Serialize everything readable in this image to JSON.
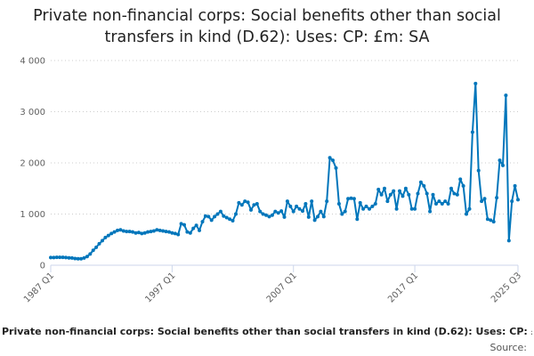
{
  "chart_data": {
    "type": "line",
    "title": "Private non-financial corps: Social benefits other than social transfers in kind (D.62): Uses: CP: £m: SA",
    "series": [
      {
        "name": "Private non-financial corps: Social benefits other than social transfers in kind (D.62): Uses: CP: £m: SA",
        "color": "#0076bb",
        "points": [
          [
            "1987 Q1",
            150
          ],
          [
            "1987 Q2",
            150
          ],
          [
            "1987 Q3",
            155
          ],
          [
            "1987 Q4",
            155
          ],
          [
            "1988 Q1",
            155
          ],
          [
            "1988 Q2",
            150
          ],
          [
            "1988 Q3",
            145
          ],
          [
            "1988 Q4",
            140
          ],
          [
            "1989 Q1",
            130
          ],
          [
            "1989 Q2",
            125
          ],
          [
            "1989 Q3",
            125
          ],
          [
            "1989 Q4",
            140
          ],
          [
            "1990 Q1",
            170
          ],
          [
            "1990 Q2",
            220
          ],
          [
            "1990 Q3",
            290
          ],
          [
            "1990 Q4",
            350
          ],
          [
            "1991 Q1",
            420
          ],
          [
            "1991 Q2",
            480
          ],
          [
            "1991 Q3",
            540
          ],
          [
            "1991 Q4",
            580
          ],
          [
            "1992 Q1",
            620
          ],
          [
            "1992 Q2",
            650
          ],
          [
            "1992 Q3",
            680
          ],
          [
            "1992 Q4",
            690
          ],
          [
            "1993 Q1",
            670
          ],
          [
            "1993 Q2",
            660
          ],
          [
            "1993 Q3",
            660
          ],
          [
            "1993 Q4",
            650
          ],
          [
            "1994 Q1",
            630
          ],
          [
            "1994 Q2",
            640
          ],
          [
            "1994 Q3",
            620
          ],
          [
            "1994 Q4",
            630
          ],
          [
            "1995 Q1",
            650
          ],
          [
            "1995 Q2",
            660
          ],
          [
            "1995 Q3",
            670
          ],
          [
            "1995 Q4",
            690
          ],
          [
            "1996 Q1",
            680
          ],
          [
            "1996 Q2",
            670
          ],
          [
            "1996 Q3",
            660
          ],
          [
            "1996 Q4",
            650
          ],
          [
            "1997 Q1",
            630
          ],
          [
            "1997 Q2",
            620
          ],
          [
            "1997 Q3",
            600
          ],
          [
            "1997 Q4",
            810
          ],
          [
            "1998 Q1",
            790
          ],
          [
            "1998 Q2",
            650
          ],
          [
            "1998 Q3",
            630
          ],
          [
            "1998 Q4",
            720
          ],
          [
            "1999 Q1",
            780
          ],
          [
            "1999 Q2",
            680
          ],
          [
            "1999 Q3",
            850
          ],
          [
            "1999 Q4",
            960
          ],
          [
            "2000 Q1",
            950
          ],
          [
            "2000 Q2",
            880
          ],
          [
            "2000 Q3",
            950
          ],
          [
            "2000 Q4",
            1000
          ],
          [
            "2001 Q1",
            1050
          ],
          [
            "2001 Q2",
            960
          ],
          [
            "2001 Q3",
            930
          ],
          [
            "2001 Q4",
            900
          ],
          [
            "2002 Q1",
            870
          ],
          [
            "2002 Q2",
            1000
          ],
          [
            "2002 Q3",
            1220
          ],
          [
            "2002 Q4",
            1180
          ],
          [
            "2003 Q1",
            1250
          ],
          [
            "2003 Q2",
            1230
          ],
          [
            "2003 Q3",
            1080
          ],
          [
            "2003 Q4",
            1180
          ],
          [
            "2004 Q1",
            1200
          ],
          [
            "2004 Q2",
            1050
          ],
          [
            "2004 Q3",
            1000
          ],
          [
            "2004 Q4",
            980
          ],
          [
            "2005 Q1",
            950
          ],
          [
            "2005 Q2",
            980
          ],
          [
            "2005 Q3",
            1050
          ],
          [
            "2005 Q4",
            1020
          ],
          [
            "2006 Q1",
            1060
          ],
          [
            "2006 Q2",
            940
          ],
          [
            "2006 Q3",
            1250
          ],
          [
            "2006 Q4",
            1150
          ],
          [
            "2007 Q1",
            1050
          ],
          [
            "2007 Q2",
            1150
          ],
          [
            "2007 Q3",
            1100
          ],
          [
            "2007 Q4",
            1060
          ],
          [
            "2008 Q1",
            1200
          ],
          [
            "2008 Q2",
            940
          ],
          [
            "2008 Q3",
            1250
          ],
          [
            "2008 Q4",
            880
          ],
          [
            "2009 Q1",
            950
          ],
          [
            "2009 Q2",
            1050
          ],
          [
            "2009 Q3",
            950
          ],
          [
            "2009 Q4",
            1250
          ],
          [
            "2010 Q1",
            2100
          ],
          [
            "2010 Q2",
            2050
          ],
          [
            "2010 Q3",
            1900
          ],
          [
            "2010 Q4",
            1200
          ],
          [
            "2011 Q1",
            1000
          ],
          [
            "2011 Q2",
            1050
          ],
          [
            "2011 Q3",
            1300
          ],
          [
            "2011 Q4",
            1310
          ],
          [
            "2012 Q1",
            1300
          ],
          [
            "2012 Q2",
            900
          ],
          [
            "2012 Q3",
            1220
          ],
          [
            "2012 Q4",
            1100
          ],
          [
            "2013 Q1",
            1150
          ],
          [
            "2013 Q2",
            1100
          ],
          [
            "2013 Q3",
            1150
          ],
          [
            "2013 Q4",
            1200
          ],
          [
            "2014 Q1",
            1480
          ],
          [
            "2014 Q2",
            1380
          ],
          [
            "2014 Q3",
            1500
          ],
          [
            "2014 Q4",
            1250
          ],
          [
            "2015 Q1",
            1380
          ],
          [
            "2015 Q2",
            1450
          ],
          [
            "2015 Q3",
            1100
          ],
          [
            "2015 Q4",
            1450
          ],
          [
            "2016 Q1",
            1350
          ],
          [
            "2016 Q2",
            1500
          ],
          [
            "2016 Q3",
            1380
          ],
          [
            "2016 Q4",
            1100
          ],
          [
            "2017 Q1",
            1100
          ],
          [
            "2017 Q2",
            1400
          ],
          [
            "2017 Q3",
            1620
          ],
          [
            "2017 Q4",
            1550
          ],
          [
            "2018 Q1",
            1400
          ],
          [
            "2018 Q2",
            1050
          ],
          [
            "2018 Q3",
            1380
          ],
          [
            "2018 Q4",
            1200
          ],
          [
            "2019 Q1",
            1250
          ],
          [
            "2019 Q2",
            1200
          ],
          [
            "2019 Q3",
            1250
          ],
          [
            "2019 Q4",
            1200
          ],
          [
            "2020 Q1",
            1500
          ],
          [
            "2020 Q2",
            1400
          ],
          [
            "2020 Q3",
            1380
          ],
          [
            "2020 Q4",
            1680
          ],
          [
            "2021 Q1",
            1550
          ],
          [
            "2021 Q2",
            1000
          ],
          [
            "2021 Q3",
            1100
          ],
          [
            "2021 Q4",
            2600
          ],
          [
            "2022 Q1",
            3550
          ],
          [
            "2022 Q2",
            1850
          ],
          [
            "2022 Q3",
            1250
          ],
          [
            "2022 Q4",
            1300
          ],
          [
            "2023 Q1",
            900
          ],
          [
            "2023 Q2",
            880
          ],
          [
            "2023 Q3",
            850
          ],
          [
            "2023 Q4",
            1320
          ],
          [
            "2024 Q1",
            2050
          ],
          [
            "2024 Q2",
            1950
          ],
          [
            "2024 Q3",
            3320
          ],
          [
            "2024 Q4",
            480
          ],
          [
            "2025 Q1",
            1250
          ],
          [
            "2025 Q2",
            1550
          ],
          [
            "2025 Q3",
            1280
          ]
        ]
      }
    ],
    "x_ticks": [
      "1987 Q1",
      "1997 Q1",
      "2007 Q1",
      "2017 Q1",
      "2025 Q3"
    ],
    "y_ticks": [
      0,
      1000,
      2000,
      3000,
      4000
    ],
    "y_tick_labels": [
      "0",
      "1 000",
      "2 000",
      "3 000",
      "4 000"
    ],
    "ylim": [
      0,
      4000
    ],
    "grid": "horizontal dotted",
    "legend_position": "bottom",
    "source_label": "Source:"
  }
}
